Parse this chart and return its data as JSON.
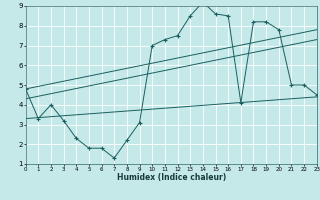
{
  "xlabel": "Humidex (Indice chaleur)",
  "bg_color": "#c5e8e8",
  "grid_color": "#ffffff",
  "line_color": "#1a5f5f",
  "xlim": [
    0,
    23
  ],
  "ylim": [
    1,
    9
  ],
  "xticks": [
    0,
    1,
    2,
    3,
    4,
    5,
    6,
    7,
    8,
    9,
    10,
    11,
    12,
    13,
    14,
    15,
    16,
    17,
    18,
    19,
    20,
    21,
    22,
    23
  ],
  "yticks": [
    1,
    2,
    3,
    4,
    5,
    6,
    7,
    8,
    9
  ],
  "main_line": {
    "x": [
      0,
      1,
      2,
      3,
      4,
      5,
      6,
      7,
      8,
      9,
      10,
      11,
      12,
      13,
      14,
      15,
      16,
      17,
      18,
      19,
      20,
      21,
      22,
      23
    ],
    "y": [
      4.8,
      3.3,
      4.0,
      3.2,
      2.3,
      1.8,
      1.8,
      1.3,
      2.2,
      3.1,
      7.0,
      7.3,
      7.5,
      8.5,
      9.2,
      8.6,
      8.5,
      4.1,
      8.2,
      8.2,
      7.8,
      5.0,
      5.0,
      4.5
    ]
  },
  "trend1": {
    "x": [
      0,
      23
    ],
    "y": [
      4.8,
      7.8
    ]
  },
  "trend2": {
    "x": [
      0,
      23
    ],
    "y": [
      4.3,
      7.3
    ]
  },
  "trend3": {
    "x": [
      0,
      23
    ],
    "y": [
      3.3,
      4.4
    ]
  }
}
